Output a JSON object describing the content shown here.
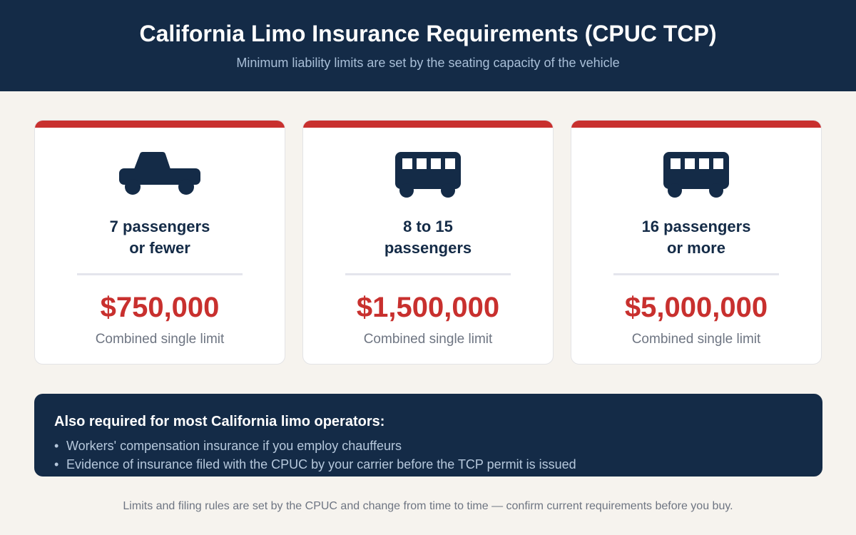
{
  "header": {
    "title": "California Limo Insurance Requirements (CPUC TCP)",
    "subtitle": "Minimum liability limits are set by the seating capacity of the vehicle"
  },
  "colors": {
    "navy": "#142b47",
    "accent_red": "#c8302e",
    "background": "#f6f3ee"
  },
  "tiers": [
    {
      "icon": "car-icon",
      "title_line1": "7 passengers",
      "title_line2": "or fewer",
      "amount": "$750,000",
      "caption": "Combined single limit"
    },
    {
      "icon": "bus-icon",
      "title_line1": "8 to 15",
      "title_line2": "passengers",
      "amount": "$1,500,000",
      "caption": "Combined single limit"
    },
    {
      "icon": "bus-icon",
      "title_line1": "16 passengers",
      "title_line2": "or more",
      "amount": "$5,000,000",
      "caption": "Combined single limit"
    }
  ],
  "also_required": {
    "heading": "Also required for most California limo operators:",
    "bullet": "•",
    "items": [
      "Workers' compensation insurance if you employ chauffeurs",
      "Evidence of insurance filed with the CPUC by your carrier before the TCP permit is issued"
    ]
  },
  "footer": {
    "note": "Limits and filing rules are set by the CPUC and change from time to time — confirm current requirements before you buy."
  }
}
